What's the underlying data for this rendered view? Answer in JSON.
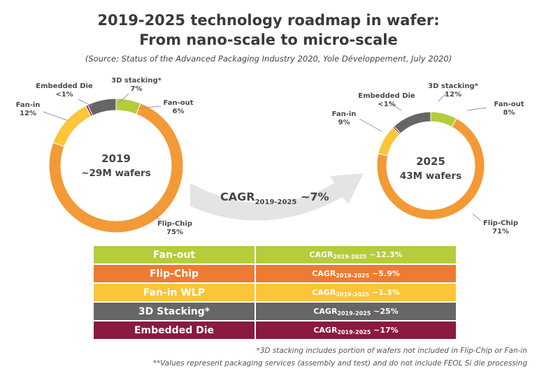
{
  "title": {
    "line1": "2019-2025 technology roadmap in wafer:",
    "line2": "From nano-scale to micro-scale",
    "source": "(Source: Status of the Advanced Packaging Industry 2020, Yole Développement, July 2020)"
  },
  "colors": {
    "fan_out": "#b5cc3c",
    "flip_chip": "#f39a36",
    "fan_in": "#fcc53a",
    "stacking_3d": "#666666",
    "embedded_die": "#8a1a3f",
    "arrow": "#e4e4e4",
    "table_fan_out": "#b5cc3c",
    "table_flip_chip": "#ee7b31",
    "table_fan_in": "#fbc537",
    "table_3d": "#666666",
    "table_embedded": "#8a1a3f"
  },
  "chart_data": [
    {
      "type": "pie",
      "title": "2019",
      "subtitle": "~29M wafers",
      "slices": [
        {
          "name": "Fan-out",
          "value": 6,
          "label": "6%",
          "color_key": "fan_out"
        },
        {
          "name": "Flip-Chip",
          "value": 75,
          "label": "75%",
          "color_key": "flip_chip"
        },
        {
          "name": "Fan-in",
          "value": 12,
          "label": "12%",
          "color_key": "fan_in"
        },
        {
          "name": "Embedded Die",
          "value": 0.5,
          "label": "<1%",
          "color_key": "embedded_die"
        },
        {
          "name": "3D stacking*",
          "value": 7,
          "label": "7%",
          "color_key": "stacking_3d"
        }
      ]
    },
    {
      "type": "pie",
      "title": "2025",
      "subtitle": "43M wafers",
      "slices": [
        {
          "name": "Fan-out",
          "value": 8,
          "label": "8%",
          "color_key": "fan_out"
        },
        {
          "name": "Flip-Chip",
          "value": 71,
          "label": "71%",
          "color_key": "flip_chip"
        },
        {
          "name": "Fan-in",
          "value": 9,
          "label": "9%",
          "color_key": "fan_in"
        },
        {
          "name": "Embedded Die",
          "value": 0.5,
          "label": "<1%",
          "color_key": "embedded_die"
        },
        {
          "name": "3D stacking*",
          "value": 12,
          "label": "12%",
          "color_key": "stacking_3d"
        }
      ]
    }
  ],
  "overall_cagr": {
    "prefix": "CAGR",
    "sub": "2019-2025",
    "value": " ~7%"
  },
  "table": {
    "rows": [
      {
        "name": "Fan-out",
        "cagr_prefix": "CAGR",
        "cagr_sub": "2019-2025",
        "cagr_value": " ~12.3%",
        "color_key": "table_fan_out"
      },
      {
        "name": "Flip-Chip",
        "cagr_prefix": "CAGR",
        "cagr_sub": "2019-2025",
        "cagr_value": " ~5.9%",
        "color_key": "table_flip_chip"
      },
      {
        "name": "Fan-in WLP",
        "cagr_prefix": "CAGR",
        "cagr_sub": "2019-2025",
        "cagr_value": " ~1.3%",
        "color_key": "table_fan_in"
      },
      {
        "name": "3D Stacking*",
        "cagr_prefix": "CAGR",
        "cagr_sub": "2019-2025",
        "cagr_value": " ~25%",
        "color_key": "table_3d"
      },
      {
        "name": "Embedded Die",
        "cagr_prefix": "CAGR",
        "cagr_sub": "2019-2025",
        "cagr_value": " ~17%",
        "color_key": "table_embedded"
      }
    ]
  },
  "footnotes": {
    "note1": "*3D stacking includes portion of wafers not included in Flip-Chip or Fan-in",
    "note2": "**Values represent packaging services (assembly and test) and do not include FEOL Si die processing"
  }
}
